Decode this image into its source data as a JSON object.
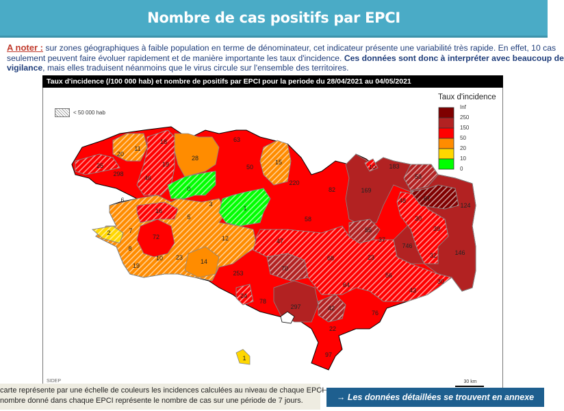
{
  "header": {
    "title": "Nombre de cas positifs par EPCI"
  },
  "note": {
    "label": "A noter :",
    "line1": " sur zones géographiques à faible population en terme de dénominateur, cet indicateur présente une variabilité très rapide. En effet, 10 cas",
    "line2": "seulement peuvent faire évoluer rapidement et de manière importante les taux d'incidence. ",
    "line2_bold": "Ces données sont donc à interpréter avec beaucoup de",
    "line3_bold": "vigilance",
    "line3": ", mais elles traduisent néanmoins que le virus circule sur l'ensemble des territoires."
  },
  "map": {
    "title": "Taux d'incidence (/100 000 hab) et nombre de positifs par EPCI pour la periode du 28/04/2021 au 04/05/2021",
    "hatch_legend": "< 50 000 hab",
    "source": "SIDEP",
    "scale": "30 km",
    "legend": {
      "title": "Taux d'incidence",
      "classes": [
        {
          "label": "Inf",
          "color": "#7f0000"
        },
        {
          "label": "250",
          "color": "#b22222"
        },
        {
          "label": "150",
          "color": "#ff0000"
        },
        {
          "label": "50",
          "color": "#ff8c00"
        },
        {
          "label": "20",
          "color": "#ffd700"
        },
        {
          "label": "10",
          "color": "#00ff00"
        },
        {
          "label": "0",
          "color": null
        }
      ]
    },
    "levels": {
      "maroon": "#7f0000",
      "darkred": "#b22222",
      "red": "#ff0000",
      "orange": "#ff8c00",
      "yellow": "#ffd700",
      "green": "#00ff00"
    },
    "epci": [
      {
        "cases": "25",
        "level": "red",
        "hatched": true
      },
      {
        "cases": "20",
        "level": "orange",
        "hatched": true
      },
      {
        "cases": "11",
        "level": "orange",
        "hatched": true
      },
      {
        "cases": "18",
        "level": "red",
        "hatched": true
      },
      {
        "cases": "298",
        "level": "red",
        "hatched": false
      },
      {
        "cases": "46",
        "level": "red",
        "hatched": true
      },
      {
        "cases": "19",
        "level": "red",
        "hatched": true
      },
      {
        "cases": "28",
        "level": "orange",
        "hatched": false
      },
      {
        "cases": "0",
        "level": "green",
        "hatched": true
      },
      {
        "cases": "6",
        "level": "orange",
        "hatched": true
      },
      {
        "cases": "3",
        "level": "orange",
        "hatched": true
      },
      {
        "cases": "1",
        "level": "green",
        "hatched": true
      },
      {
        "cases": "16",
        "level": "red",
        "hatched": true
      },
      {
        "cases": "5",
        "level": "orange",
        "hatched": true
      },
      {
        "cases": "2",
        "level": "yellow",
        "hatched": true
      },
      {
        "cases": "7",
        "level": "orange",
        "hatched": true
      },
      {
        "cases": "72",
        "level": "red",
        "hatched": false
      },
      {
        "cases": "12",
        "level": "orange",
        "hatched": true
      },
      {
        "cases": "8",
        "level": "orange",
        "hatched": true
      },
      {
        "cases": "10",
        "level": "orange",
        "hatched": true
      },
      {
        "cases": "23",
        "level": "orange",
        "hatched": true
      },
      {
        "cases": "14",
        "level": "orange",
        "hatched": false
      },
      {
        "cases": "19",
        "level": "orange",
        "hatched": true
      },
      {
        "cases": "253",
        "level": "red",
        "hatched": false
      },
      {
        "cases": "63",
        "level": "red",
        "hatched": false
      },
      {
        "cases": "50",
        "level": "red",
        "hatched": false
      },
      {
        "cases": "15",
        "level": "orange",
        "hatched": true
      },
      {
        "cases": "220",
        "level": "red",
        "hatched": false
      },
      {
        "cases": "82",
        "level": "red",
        "hatched": false
      },
      {
        "cases": "169",
        "level": "darkred",
        "hatched": false
      },
      {
        "cases": "10",
        "level": "red",
        "hatched": true
      },
      {
        "cases": "183",
        "level": "darkred",
        "hatched": false
      },
      {
        "cases": "53",
        "level": "darkred",
        "hatched": true
      },
      {
        "cases": "48",
        "level": "red",
        "hatched": true
      },
      {
        "cases": "67",
        "level": "maroon",
        "hatched": true
      },
      {
        "cases": "124",
        "level": "darkred",
        "hatched": false
      },
      {
        "cases": "58",
        "level": "red",
        "hatched": false
      },
      {
        "cases": "30",
        "level": "red",
        "hatched": true
      },
      {
        "cases": "39",
        "level": "red",
        "hatched": true
      },
      {
        "cases": "55",
        "level": "darkred",
        "hatched": true
      },
      {
        "cases": "37",
        "level": "red",
        "hatched": true
      },
      {
        "cases": "47",
        "level": "red",
        "hatched": true
      },
      {
        "cases": "746",
        "level": "darkred",
        "hatched": false
      },
      {
        "cases": "146",
        "level": "darkred",
        "hatched": false
      },
      {
        "cases": "32",
        "level": "red",
        "hatched": true
      },
      {
        "cases": "68",
        "level": "red",
        "hatched": true
      },
      {
        "cases": "23",
        "level": "red",
        "hatched": true
      },
      {
        "cases": "70",
        "level": "darkred",
        "hatched": true
      },
      {
        "cases": "56",
        "level": "red",
        "hatched": true
      },
      {
        "cases": "24",
        "level": "red",
        "hatched": true
      },
      {
        "cases": "78",
        "level": "red",
        "hatched": false
      },
      {
        "cases": "297",
        "level": "darkred",
        "hatched": false
      },
      {
        "cases": "64",
        "level": "red",
        "hatched": true
      },
      {
        "cases": "42",
        "level": "darkred",
        "hatched": true
      },
      {
        "cases": "22",
        "level": "red",
        "hatched": true
      },
      {
        "cases": "76",
        "level": "red",
        "hatched": false
      },
      {
        "cases": "97",
        "level": "red",
        "hatched": false
      },
      {
        "cases": "1",
        "level": "yellow",
        "hatched": false
      },
      {
        "cases": "43",
        "level": "red",
        "hatched": true
      },
      {
        "cases": "30",
        "level": "red",
        "hatched": true
      }
    ]
  },
  "footer": {
    "note_line1": "carte représente par une échelle de couleurs les incidences calculées au niveau de chaque EPCI ;",
    "note_line2": "nombre donné dans chaque EPCI représente le nombre de cas sur une période de 7 jours.",
    "annex_button": "→ Les données détaillées se trouvent en annexe"
  }
}
